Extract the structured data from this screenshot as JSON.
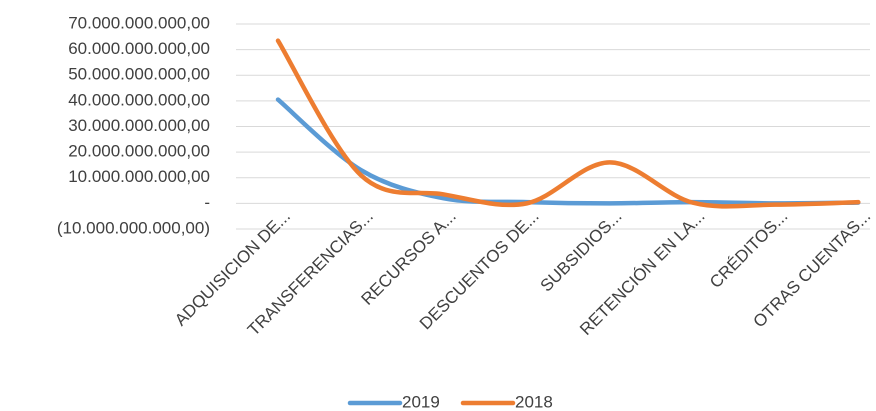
{
  "chart_data": {
    "type": "line",
    "categories": [
      "ADQUISICION DE...",
      "TRANSFERENCIAS...",
      "RECURSOS A...",
      "DESCUENTOS DE...",
      "SUBSIDIOS...",
      "RETENCIÓN EN LA...",
      "CRÉDITOS...",
      "OTRAS CUENTAS..."
    ],
    "series": [
      {
        "name": "2019",
        "color": "#5b9bd5",
        "values": [
          40500000000,
          13000000000,
          2000000000,
          500000000,
          0,
          500000000,
          0,
          300000000
        ]
      },
      {
        "name": "2018",
        "color": "#ed7d31",
        "values": [
          63500000000,
          11000000000,
          3500000000,
          0,
          16000000000,
          300000000,
          -500000000,
          500000000
        ]
      }
    ],
    "ylim": [
      -10000000000,
      70000000000
    ],
    "yticks": [
      {
        "value": -10000000000,
        "label": "(10.000.000.000,00)"
      },
      {
        "value": 0,
        "label": "-"
      },
      {
        "value": 10000000000,
        "label": "10.000.000.000,00"
      },
      {
        "value": 20000000000,
        "label": "20.000.000.000,00"
      },
      {
        "value": 30000000000,
        "label": "30.000.000.000,00"
      },
      {
        "value": 40000000000,
        "label": "40.000.000.000,00"
      },
      {
        "value": 50000000000,
        "label": "50.000.000.000,00"
      },
      {
        "value": 60000000000,
        "label": "60.000.000.000,00"
      },
      {
        "value": 70000000000,
        "label": "70.000.000.000,00"
      }
    ],
    "grid": true,
    "smooth": true,
    "legend": "bottom"
  }
}
